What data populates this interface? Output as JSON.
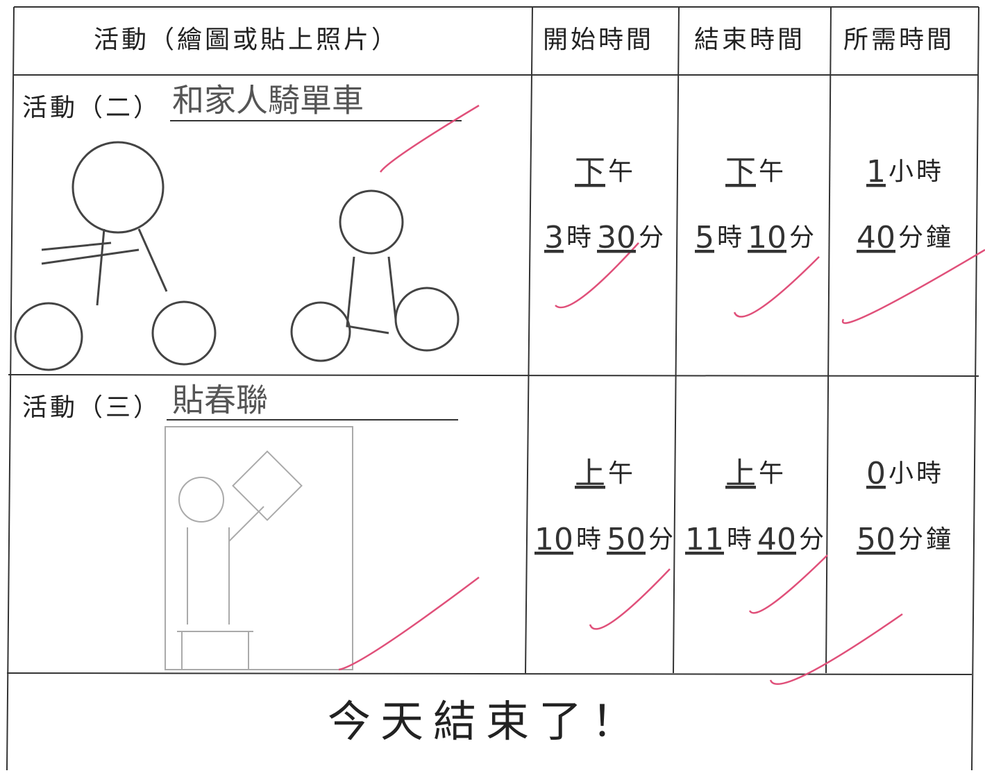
{
  "header": {
    "activity": "活動（繪圖或貼上照片）",
    "start": "開始時間",
    "end": "結束時間",
    "duration": "所需時間"
  },
  "units": {
    "period": "午",
    "hour": "時",
    "minute": "分",
    "hours": "小時",
    "minutes": "分鐘"
  },
  "activities": [
    {
      "label": "活動（二）",
      "name": "和家人騎單車",
      "start": {
        "period": "下",
        "hour": 3,
        "minute": 30
      },
      "end": {
        "period": "下",
        "hour": 5,
        "minute": 10
      },
      "duration": {
        "hours": 1,
        "minutes": 40
      }
    },
    {
      "label": "活動（三）",
      "name": "貼春聯",
      "start": {
        "period": "上",
        "hour": 10,
        "minute": 50
      },
      "end": {
        "period": "上",
        "hour": 11,
        "minute": 40
      },
      "duration": {
        "hours": 0,
        "minutes": 50
      }
    }
  ],
  "footer": "今天結束了！"
}
